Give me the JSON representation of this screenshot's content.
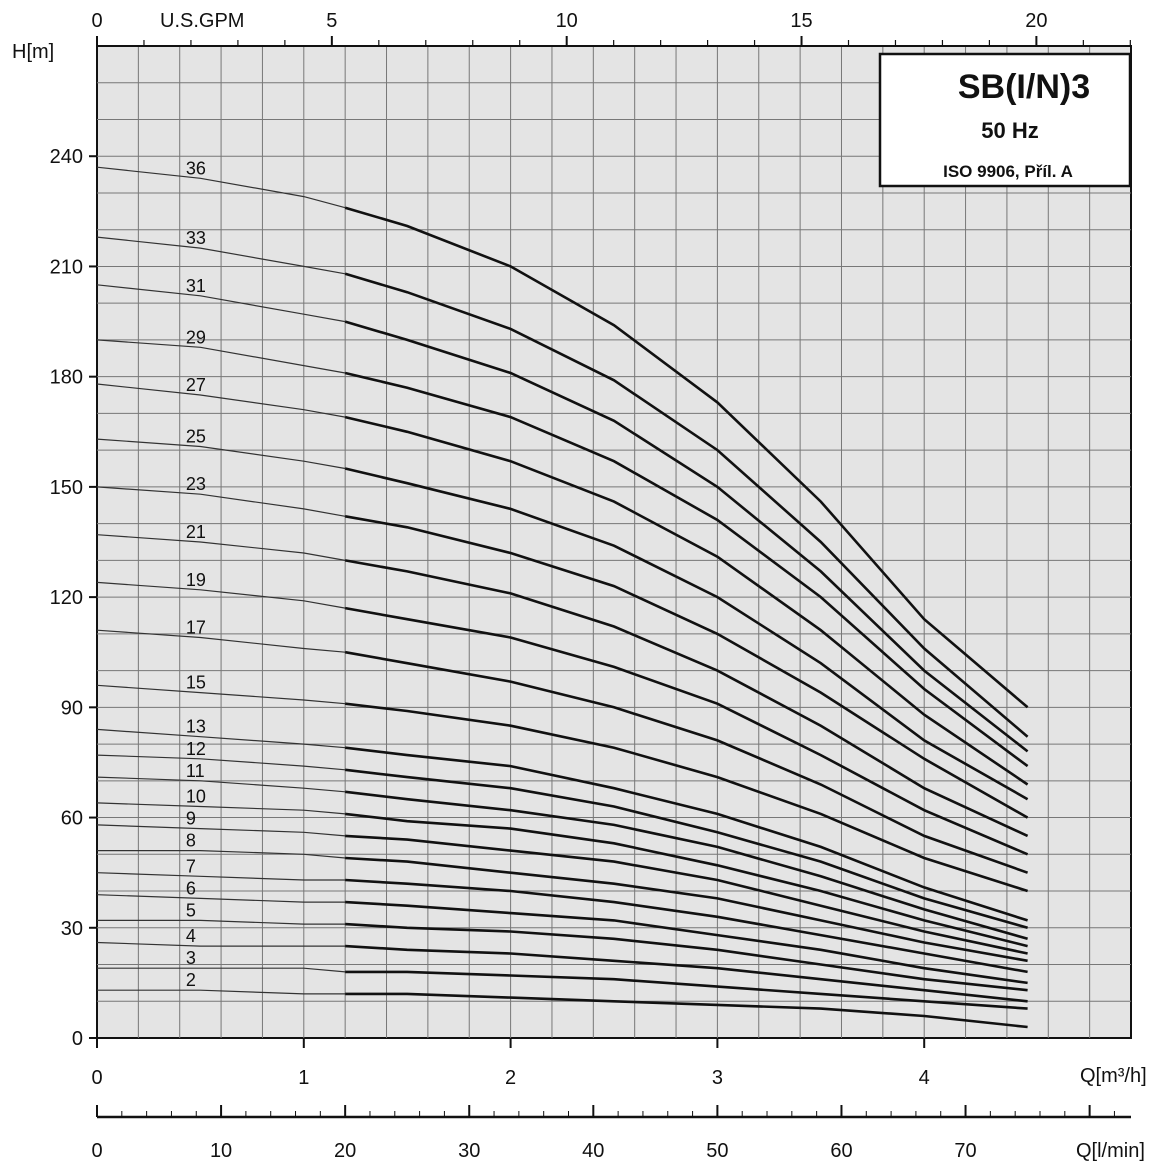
{
  "chart_data": {
    "type": "line",
    "title": "SB(I/N)3",
    "subtitle": "50 Hz",
    "note": "ISO 9906, Příl. A",
    "ylabel": "H[m]",
    "xlabel": "Q[m³/h]",
    "xlabel_top": "U.S.GPM",
    "xlabel_bottom": "Q[l/min]",
    "xlim": [
      0,
      5
    ],
    "ylim": [
      0,
      270
    ],
    "grid": true,
    "y_ticks": [
      "0",
      "30",
      "60",
      "90",
      "120",
      "150",
      "180",
      "210",
      "240"
    ],
    "x_ticks": [
      "0",
      "1",
      "2",
      "3",
      "4"
    ],
    "top_ticks": [
      "0",
      "5",
      "10",
      "15",
      "20"
    ],
    "bottom_ticks": [
      "0",
      "10",
      "20",
      "30",
      "40",
      "50",
      "60",
      "70"
    ],
    "x": [
      0,
      0.5,
      1.0,
      1.2,
      1.5,
      2.0,
      2.5,
      3.0,
      3.5,
      4.0,
      4.5
    ],
    "highlight_range": [
      1.2,
      4.5
    ],
    "series": [
      {
        "name": "36",
        "values": [
          237,
          234,
          229,
          226,
          221,
          210,
          194,
          173,
          146,
          114,
          90
        ]
      },
      {
        "name": "33",
        "values": [
          218,
          215,
          210,
          208,
          203,
          193,
          179,
          160,
          135,
          106,
          82
        ]
      },
      {
        "name": "31",
        "values": [
          205,
          202,
          197,
          195,
          190,
          181,
          168,
          150,
          127,
          100,
          78
        ]
      },
      {
        "name": "29",
        "values": [
          190,
          188,
          183,
          181,
          177,
          169,
          157,
          141,
          120,
          95,
          74
        ]
      },
      {
        "name": "27",
        "values": [
          178,
          175,
          171,
          169,
          165,
          157,
          146,
          131,
          111,
          88,
          69
        ]
      },
      {
        "name": "25",
        "values": [
          163,
          161,
          157,
          155,
          151,
          144,
          134,
          120,
          102,
          81,
          65
        ]
      },
      {
        "name": "23",
        "values": [
          150,
          148,
          144,
          142,
          139,
          132,
          123,
          110,
          94,
          76,
          60
        ]
      },
      {
        "name": "21",
        "values": [
          137,
          135,
          132,
          130,
          127,
          121,
          112,
          100,
          85,
          68,
          55
        ]
      },
      {
        "name": "19",
        "values": [
          124,
          122,
          119,
          117,
          114,
          109,
          101,
          91,
          77,
          62,
          50
        ]
      },
      {
        "name": "17",
        "values": [
          111,
          109,
          106,
          105,
          102,
          97,
          90,
          81,
          69,
          55,
          45
        ]
      },
      {
        "name": "15",
        "values": [
          96,
          94,
          92,
          91,
          89,
          85,
          79,
          71,
          61,
          49,
          40
        ]
      },
      {
        "name": "13",
        "values": [
          84,
          82,
          80,
          79,
          77,
          74,
          68,
          61,
          52,
          41,
          32
        ]
      },
      {
        "name": "12",
        "values": [
          77,
          76,
          74,
          73,
          71,
          68,
          63,
          56,
          48,
          38,
          30
        ]
      },
      {
        "name": "11",
        "values": [
          71,
          70,
          68,
          67,
          65,
          62,
          58,
          52,
          44,
          35,
          27
        ]
      },
      {
        "name": "10",
        "values": [
          64,
          63,
          62,
          61,
          59,
          57,
          53,
          47,
          40,
          32,
          25
        ]
      },
      {
        "name": "9",
        "values": [
          58,
          57,
          56,
          55,
          54,
          51,
          48,
          43,
          36,
          29,
          23
        ]
      },
      {
        "name": "8",
        "values": [
          51,
          51,
          50,
          49,
          48,
          45,
          42,
          38,
          32,
          26,
          21
        ]
      },
      {
        "name": "7",
        "values": [
          45,
          44,
          43,
          43,
          42,
          40,
          37,
          33,
          28,
          23,
          18
        ]
      },
      {
        "name": "6",
        "values": [
          39,
          38,
          37,
          37,
          36,
          34,
          32,
          28,
          24,
          19,
          15
        ]
      },
      {
        "name": "5",
        "values": [
          32,
          32,
          31,
          31,
          30,
          29,
          27,
          24,
          20,
          16,
          13
        ]
      },
      {
        "name": "4",
        "values": [
          26,
          25,
          25,
          25,
          24,
          23,
          21,
          19,
          16,
          13,
          10
        ]
      },
      {
        "name": "3",
        "values": [
          19,
          19,
          19,
          18,
          18,
          17,
          16,
          14,
          12,
          10,
          8
        ]
      },
      {
        "name": "2",
        "values": [
          13,
          13,
          12,
          12,
          12,
          11,
          10,
          9,
          8,
          6,
          3
        ]
      }
    ]
  }
}
